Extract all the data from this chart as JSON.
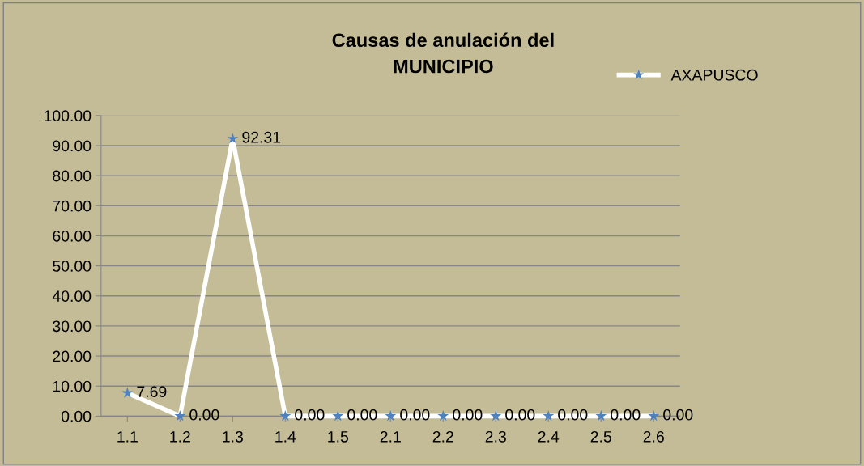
{
  "chart_data": {
    "type": "line",
    "title": "Causas de anulación del\nMUNICIPIO",
    "categories": [
      "1.1",
      "1.2",
      "1.3",
      "1.4",
      "1.5",
      "2.1",
      "2.2",
      "2.3",
      "2.4",
      "2.5",
      "2.6"
    ],
    "series": [
      {
        "name": "AXAPUSCO",
        "color": "#ffffff",
        "colors": [
          "#4f81bd",
          "#4f81bd",
          "#4f81bd",
          "#4f81bd",
          "#4f81bd",
          "#4f81bd",
          "#4f81bd",
          "#4f81bd",
          "#4f81bd",
          "#4f81bd",
          "#4f81bd"
        ],
        "values": [
          7.69,
          0,
          92.31,
          0,
          0,
          0,
          0,
          0,
          0,
          0,
          0
        ],
        "value_labels": [
          "7.69",
          "0.00",
          "92.31",
          "0.00",
          "0.00",
          "0.00",
          "0.00",
          "0.00",
          "0.00",
          "0.00",
          "0.00"
        ]
      }
    ],
    "ylim": [
      0,
      100
    ],
    "yticks": [
      {
        "value": 0,
        "label": "0.00"
      },
      {
        "value": 10,
        "label": "10.00"
      },
      {
        "value": 20,
        "label": "20.00"
      },
      {
        "value": 30,
        "label": "30.00"
      },
      {
        "value": 40,
        "label": "40.00"
      },
      {
        "value": 50,
        "label": "50.00"
      },
      {
        "value": 60,
        "label": "60.00"
      },
      {
        "value": 70,
        "label": "70.00"
      },
      {
        "value": 80,
        "label": "80.00"
      },
      {
        "value": 90,
        "label": "90.00"
      },
      {
        "value": 100,
        "label": "100.00"
      }
    ],
    "grid": "y",
    "legend": "top right",
    "marker": "star",
    "line_style": "solid"
  }
}
